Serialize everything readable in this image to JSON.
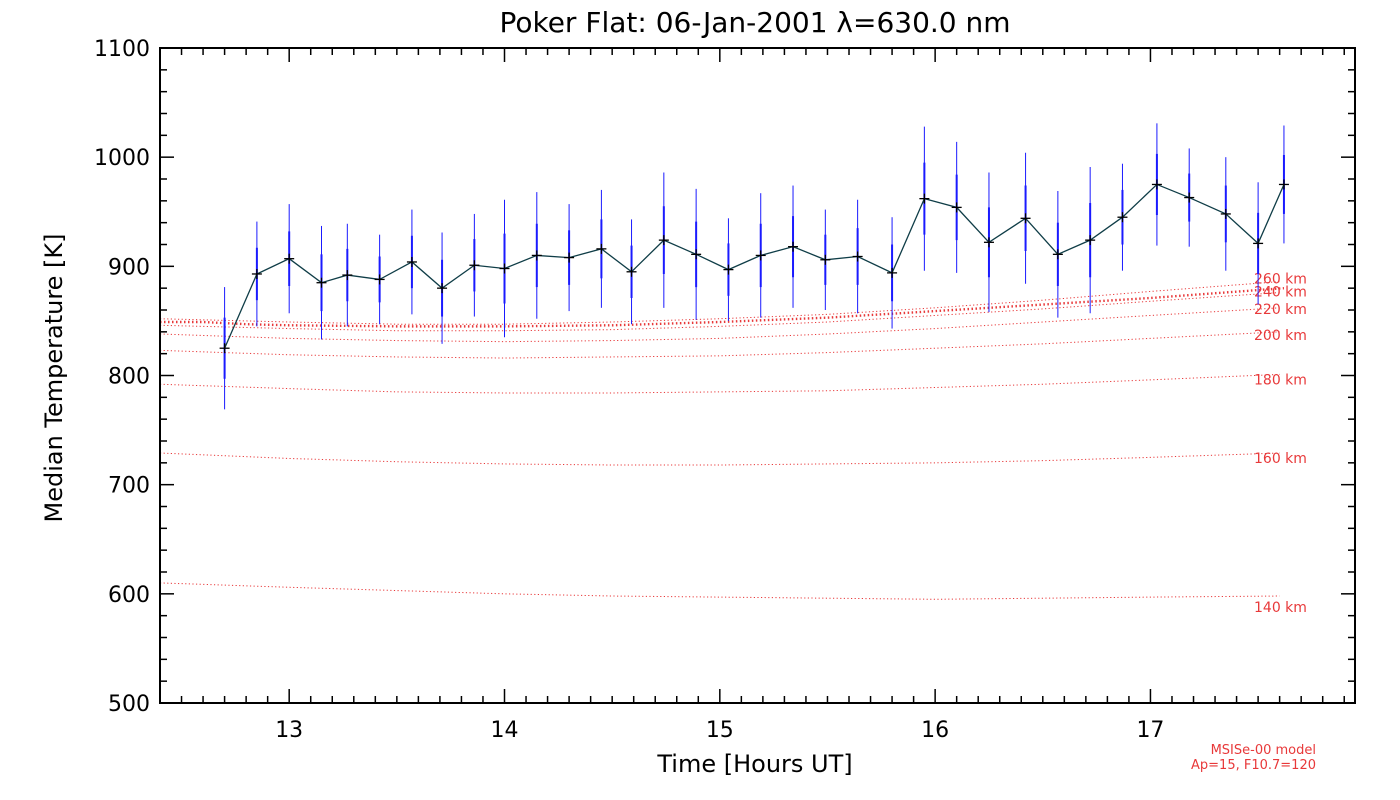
{
  "chart_data": {
    "type": "line",
    "title": "Poker Flat: 06-Jan-2001 λ=630.0 nm",
    "xlabel": "Time [Hours UT]",
    "ylabel": "Median Temperature [K]",
    "xlim": [
      12.4,
      17.95
    ],
    "ylim": [
      500,
      1100
    ],
    "xticks": [
      13,
      14,
      15,
      16,
      17
    ],
    "yticks": [
      500,
      600,
      700,
      800,
      900,
      1000,
      1100
    ],
    "measured": {
      "name": "Median temperature",
      "color": "#0f3d47",
      "errorbar_color": "#1a1aff",
      "points": [
        {
          "t": 12.7,
          "T": 825,
          "err_in": 28,
          "err_out": 56
        },
        {
          "t": 12.85,
          "T": 893,
          "err_in": 24,
          "err_out": 48
        },
        {
          "t": 13.0,
          "T": 907,
          "err_in": 25,
          "err_out": 50
        },
        {
          "t": 13.15,
          "T": 885,
          "err_in": 26,
          "err_out": 52
        },
        {
          "t": 13.27,
          "T": 892,
          "err_in": 24,
          "err_out": 47
        },
        {
          "t": 13.42,
          "T": 888,
          "err_in": 21,
          "err_out": 41
        },
        {
          "t": 13.57,
          "T": 904,
          "err_in": 24,
          "err_out": 48
        },
        {
          "t": 13.71,
          "T": 880,
          "err_in": 26,
          "err_out": 51
        },
        {
          "t": 13.86,
          "T": 901,
          "err_in": 24,
          "err_out": 47
        },
        {
          "t": 14.0,
          "T": 898,
          "err_in": 32,
          "err_out": 63
        },
        {
          "t": 14.15,
          "T": 910,
          "err_in": 29,
          "err_out": 58
        },
        {
          "t": 14.3,
          "T": 908,
          "err_in": 25,
          "err_out": 49
        },
        {
          "t": 14.45,
          "T": 916,
          "err_in": 27,
          "err_out": 54
        },
        {
          "t": 14.59,
          "T": 895,
          "err_in": 24,
          "err_out": 48
        },
        {
          "t": 14.74,
          "T": 924,
          "err_in": 31,
          "err_out": 62
        },
        {
          "t": 14.89,
          "T": 911,
          "err_in": 30,
          "err_out": 60
        },
        {
          "t": 15.04,
          "T": 897,
          "err_in": 24,
          "err_out": 47
        },
        {
          "t": 15.19,
          "T": 910,
          "err_in": 29,
          "err_out": 57
        },
        {
          "t": 15.34,
          "T": 918,
          "err_in": 28,
          "err_out": 56
        },
        {
          "t": 15.49,
          "T": 906,
          "err_in": 23,
          "err_out": 46
        },
        {
          "t": 15.64,
          "T": 909,
          "err_in": 26,
          "err_out": 52
        },
        {
          "t": 15.8,
          "T": 894,
          "err_in": 26,
          "err_out": 51
        },
        {
          "t": 15.95,
          "T": 962,
          "err_in": 33,
          "err_out": 66
        },
        {
          "t": 16.1,
          "T": 954,
          "err_in": 30,
          "err_out": 60
        },
        {
          "t": 16.25,
          "T": 922,
          "err_in": 32,
          "err_out": 64
        },
        {
          "t": 16.42,
          "T": 944,
          "err_in": 30,
          "err_out": 60
        },
        {
          "t": 16.57,
          "T": 911,
          "err_in": 29,
          "err_out": 58
        },
        {
          "t": 16.72,
          "T": 924,
          "err_in": 34,
          "err_out": 67
        },
        {
          "t": 16.87,
          "T": 945,
          "err_in": 25,
          "err_out": 49
        },
        {
          "t": 17.03,
          "T": 975,
          "err_in": 28,
          "err_out": 56
        },
        {
          "t": 17.18,
          "T": 963,
          "err_in": 22,
          "err_out": 45
        },
        {
          "t": 17.35,
          "T": 948,
          "err_in": 26,
          "err_out": 52
        },
        {
          "t": 17.5,
          "T": 921,
          "err_in": 28,
          "err_out": 56
        },
        {
          "t": 17.62,
          "T": 975,
          "err_in": 27,
          "err_out": 54
        }
      ]
    },
    "model": {
      "name": "MSISe-00 model",
      "color": "#e8393a",
      "x": [
        12.4,
        13.0,
        13.5,
        14.0,
        14.5,
        15.0,
        15.5,
        16.0,
        16.5,
        17.0,
        17.6
      ],
      "series": [
        {
          "label": "140 km",
          "values": [
            610,
            606,
            603,
            600,
            598,
            597,
            596,
            595,
            596,
            597,
            598
          ]
        },
        {
          "label": "160 km",
          "values": [
            729,
            724,
            721,
            719,
            718,
            718,
            719,
            720,
            722,
            725,
            729
          ]
        },
        {
          "label": "180 km",
          "values": [
            792,
            788,
            785,
            784,
            784,
            785,
            786,
            789,
            792,
            796,
            801
          ]
        },
        {
          "label": "200 km",
          "values": [
            823,
            819,
            817,
            816,
            817,
            818,
            821,
            825,
            829,
            834,
            840
          ]
        },
        {
          "label": "220 km",
          "values": [
            838,
            834,
            832,
            831,
            832,
            834,
            838,
            843,
            849,
            855,
            862
          ]
        },
        {
          "label": "240 km",
          "values": [
            846,
            843,
            841,
            841,
            842,
            845,
            849,
            855,
            861,
            868,
            876
          ]
        },
        {
          "label": "260 km",
          "values": [
            852,
            849,
            847,
            847,
            849,
            852,
            856,
            862,
            869,
            877,
            886
          ]
        }
      ],
      "interpolated": {
        "x": [
          12.4,
          12.6,
          12.8,
          13.0,
          13.5,
          14.0,
          14.5,
          15.0,
          15.5,
          16.0,
          16.5,
          17.0,
          17.62
        ],
        "values": [
          849,
          849,
          847,
          846,
          845,
          845,
          846,
          849,
          853,
          859,
          865,
          871,
          880
        ]
      }
    },
    "annotations": [
      "MSISe-00 model",
      "Ap=15, F10.7=120"
    ]
  }
}
